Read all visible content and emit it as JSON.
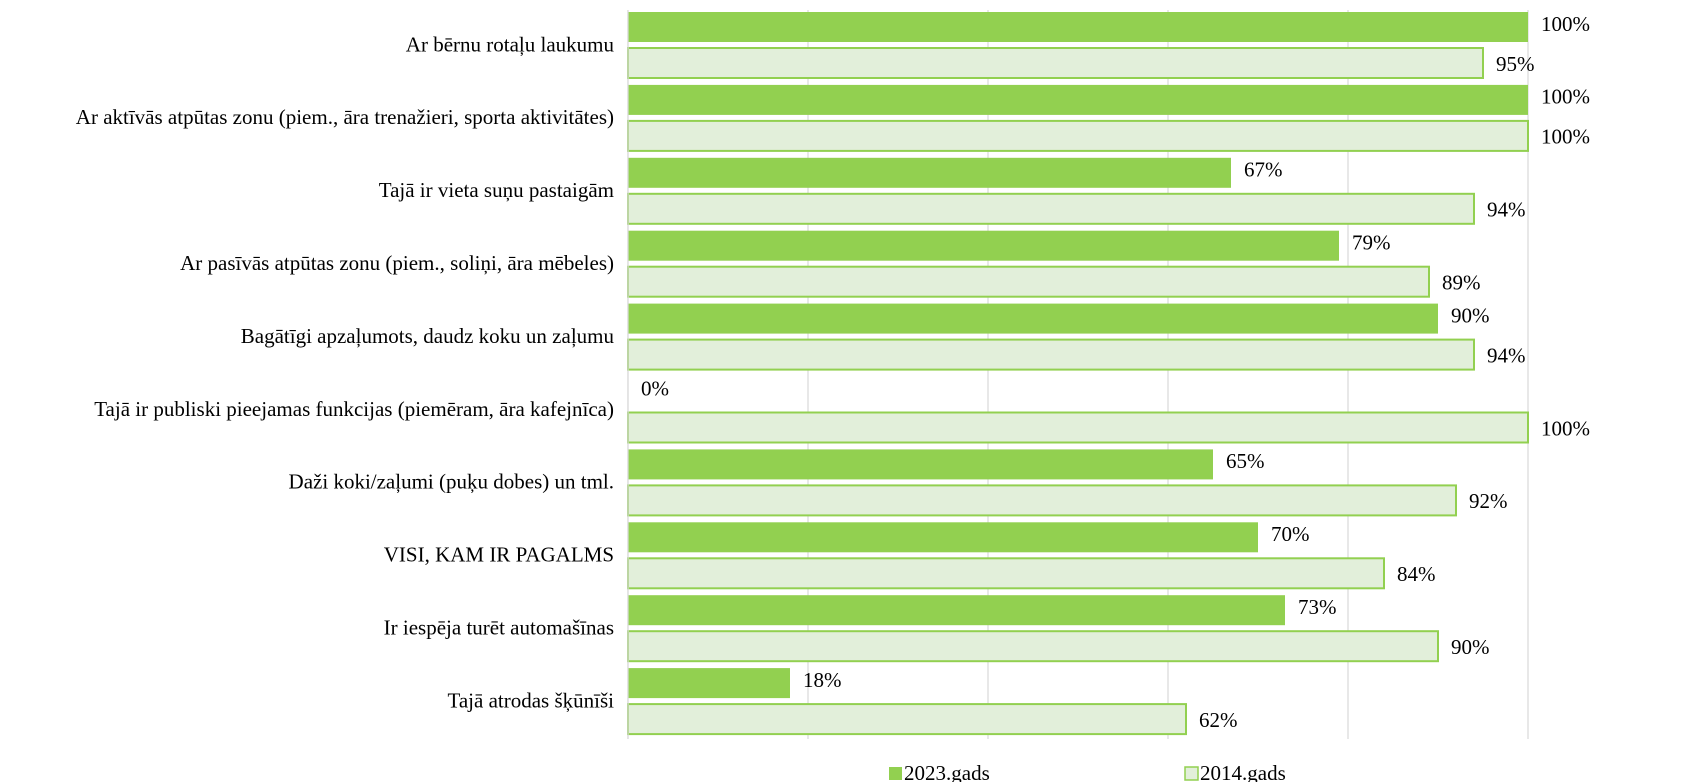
{
  "chart_data": {
    "type": "bar",
    "orientation": "horizontal",
    "categories": [
      "Ar bērnu rotaļu laukumu",
      "Ar aktīvās atpūtas zonu (piem., āra trenažieri, sporta aktivitātes)",
      "Tajā ir vieta suņu pastaigām",
      "Ar pasīvās atpūtas zonu (piem., soliņi, āra mēbeles)",
      "Bagātīgi apzaļumots, daudz koku un zaļumu",
      "Tajā ir publiski pieejamas funkcijas (piemēram, āra kafejnīca)",
      "Daži koki/zaļumi (puķu dobes) un tml.",
      "VISI, KAM IR PAGALMS",
      "Ir iespēja turēt automašīnas",
      "Tajā atrodas šķūnīši"
    ],
    "series": [
      {
        "name": "2023.gads",
        "color": "#92d050",
        "values": [
          100,
          100,
          67,
          79,
          90,
          0,
          65,
          70,
          73,
          18
        ],
        "value_labels": [
          "100%",
          "100%",
          "67%",
          "79%",
          "90%",
          "0%",
          "65%",
          "70%",
          "73%",
          "18%"
        ]
      },
      {
        "name": "2014.gads",
        "color": "#e2efda",
        "edge_color": "#92d050",
        "values": [
          95,
          100,
          94,
          89,
          94,
          100,
          92,
          84,
          90,
          62
        ],
        "value_labels": [
          "95%",
          "100%",
          "94%",
          "89%",
          "94%",
          "100%",
          "92%",
          "84%",
          "90%",
          "62%"
        ]
      }
    ],
    "xlim": [
      0,
      100
    ],
    "xticks": [
      0,
      20,
      40,
      60,
      80,
      100
    ],
    "grid": true,
    "legend": "bottom"
  }
}
